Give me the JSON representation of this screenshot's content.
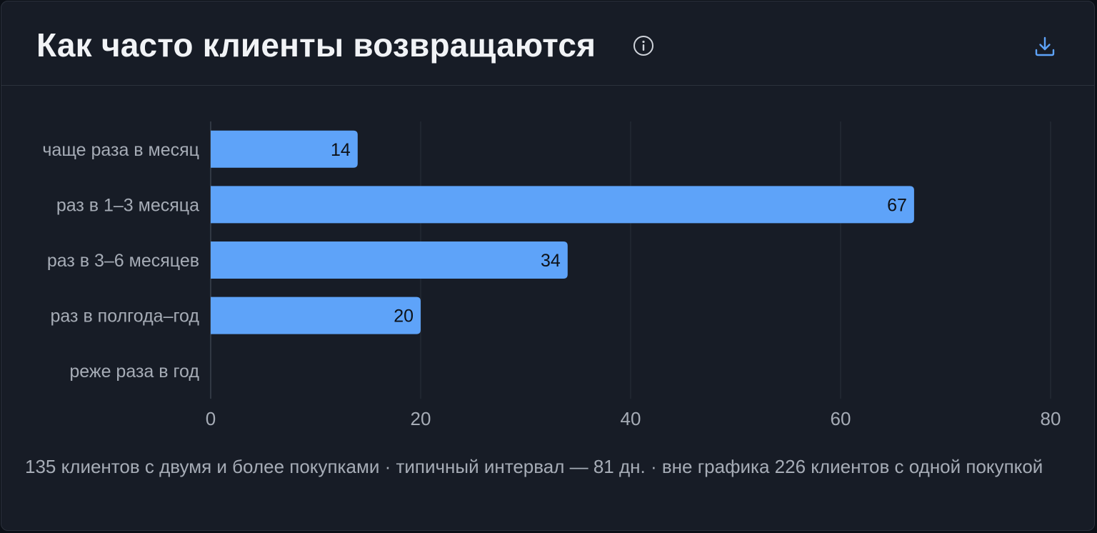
{
  "card": {
    "title": "Как часто клиенты возвращаются",
    "info_icon": "info-circle-icon",
    "download_icon": "download-icon",
    "footnote": "135 клиентов с двумя и более покупками · типичный интервал — 81 дн. · вне графика 226 клиентов с одной покупкой"
  },
  "colors": {
    "background": "#171c26",
    "bar": "#5ea3f9",
    "bar_label": "#0d1117",
    "axis_text": "#a6acb6",
    "title": "#f1f3f6",
    "gridline": "#2a303a",
    "accent": "#5ea3f9"
  },
  "chart_data": {
    "type": "bar",
    "orientation": "horizontal",
    "categories": [
      "чаще раза в месяц",
      "раз в 1–3 месяца",
      "раз в 3–6 месяцев",
      "раз в полгода–год",
      "реже раза в год"
    ],
    "values": [
      14,
      67,
      34,
      20,
      0
    ],
    "value_labels": [
      "14",
      "67",
      "34",
      "20",
      ""
    ],
    "x_ticks": [
      0,
      20,
      40,
      60,
      80
    ],
    "xlim": [
      0,
      80
    ],
    "title": "Как часто клиенты возвращаются",
    "xlabel": "",
    "ylabel": "",
    "grid": true,
    "legend": false
  }
}
